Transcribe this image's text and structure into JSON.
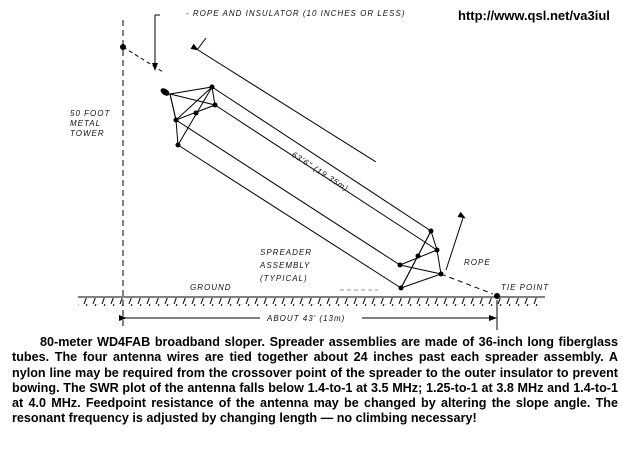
{
  "url": "http://www.qsl.net/va3iul",
  "labels": {
    "rope_insulator": "- ROPE AND INSULATOR (10 INCHES OR LESS)",
    "tower": [
      "50 FOOT",
      "METAL",
      "TOWER"
    ],
    "length": "63'6\" (19.35m)",
    "spreader": [
      "SPREADER",
      "ASSEMBLY",
      "(TYPICAL)"
    ],
    "rope": "ROPE",
    "ground": "GROUND",
    "tie_point": "TIE POINT",
    "distance": "ABOUT 43' (13m)"
  },
  "caption": "80-meter WD4FAB broadband sloper. Spreader assemblies are made of 36-inch long fiberglass tubes. The four antenna wires are tied together about 24 inches past each spreader assembly. A nylon line may be required from the crossover point of the spreader to the outer insulator to prevent bowing. The SWR plot of the antenna falls below 1.4-to-1 at 3.5 MHz; 1.25-to-1 at 3.8 MHz and 1.4-to-1 at 4.0 MHz. Feedpoint resistance of the antenna may be changed by altering the slope angle. The resonant frequency is adjusted by changing length — no climbing necessary!"
}
